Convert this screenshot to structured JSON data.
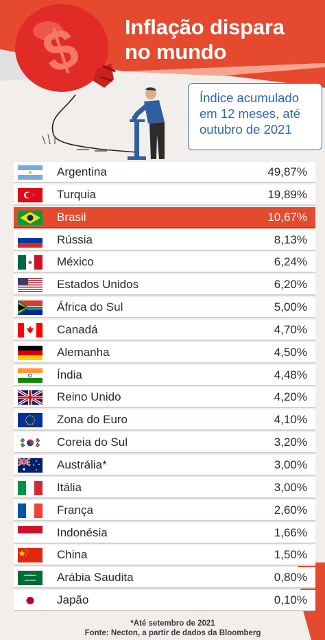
{
  "header": {
    "title_line1": "Inflação dispara",
    "title_line2": "no mundo",
    "subtitle_line1": "Índice acumulado",
    "subtitle_line2": "em 12 meses, até",
    "subtitle_line3": "outubro de 2021"
  },
  "colors": {
    "accent": "#e54a2f",
    "background": "#f1eeeb",
    "subtitle_blue": "#2f65b0"
  },
  "rows": [
    {
      "country": "Argentina",
      "value": "49,87%",
      "flag": "argentina-flag-icon"
    },
    {
      "country": "Turquia",
      "value": "19,89%",
      "flag": "turkey-flag-icon"
    },
    {
      "country": "Brasil",
      "value": "10,67%",
      "flag": "brazil-flag-icon",
      "highlight": true
    },
    {
      "country": "Rússia",
      "value": "8,13%",
      "flag": "russia-flag-icon"
    },
    {
      "country": "México",
      "value": "6,24%",
      "flag": "mexico-flag-icon"
    },
    {
      "country": "Estados Unidos",
      "value": "6,20%",
      "flag": "usa-flag-icon"
    },
    {
      "country": "África do Sul",
      "value": "5,00%",
      "flag": "south-africa-flag-icon"
    },
    {
      "country": "Canadá",
      "value": "4,70%",
      "flag": "canada-flag-icon"
    },
    {
      "country": "Alemanha",
      "value": "4,50%",
      "flag": "germany-flag-icon"
    },
    {
      "country": "Índia",
      "value": "4,48%",
      "flag": "india-flag-icon"
    },
    {
      "country": "Reino Unido",
      "value": "4,20%",
      "flag": "uk-flag-icon"
    },
    {
      "country": "Zona do Euro",
      "value": "4,10%",
      "flag": "eu-flag-icon"
    },
    {
      "country": "Coreia do Sul",
      "value": "3,20%",
      "flag": "south-korea-flag-icon"
    },
    {
      "country": "Austrália*",
      "value": "3,00%",
      "flag": "australia-flag-icon"
    },
    {
      "country": "Itália",
      "value": "3,00%",
      "flag": "italy-flag-icon"
    },
    {
      "country": "França",
      "value": "2,60%",
      "flag": "france-flag-icon"
    },
    {
      "country": "Indonésia",
      "value": "1,66%",
      "flag": "indonesia-flag-icon"
    },
    {
      "country": "China",
      "value": "1,50%",
      "flag": "china-flag-icon"
    },
    {
      "country": "Arábia Saudita",
      "value": "0,80%",
      "flag": "saudi-arabia-flag-icon"
    },
    {
      "country": "Japão",
      "value": "0,10%",
      "flag": "japan-flag-icon"
    }
  ],
  "footnotes": {
    "note": "*Até setembro de 2021",
    "source": "Fonte: Necton, a partir de dados da Bloomberg"
  }
}
